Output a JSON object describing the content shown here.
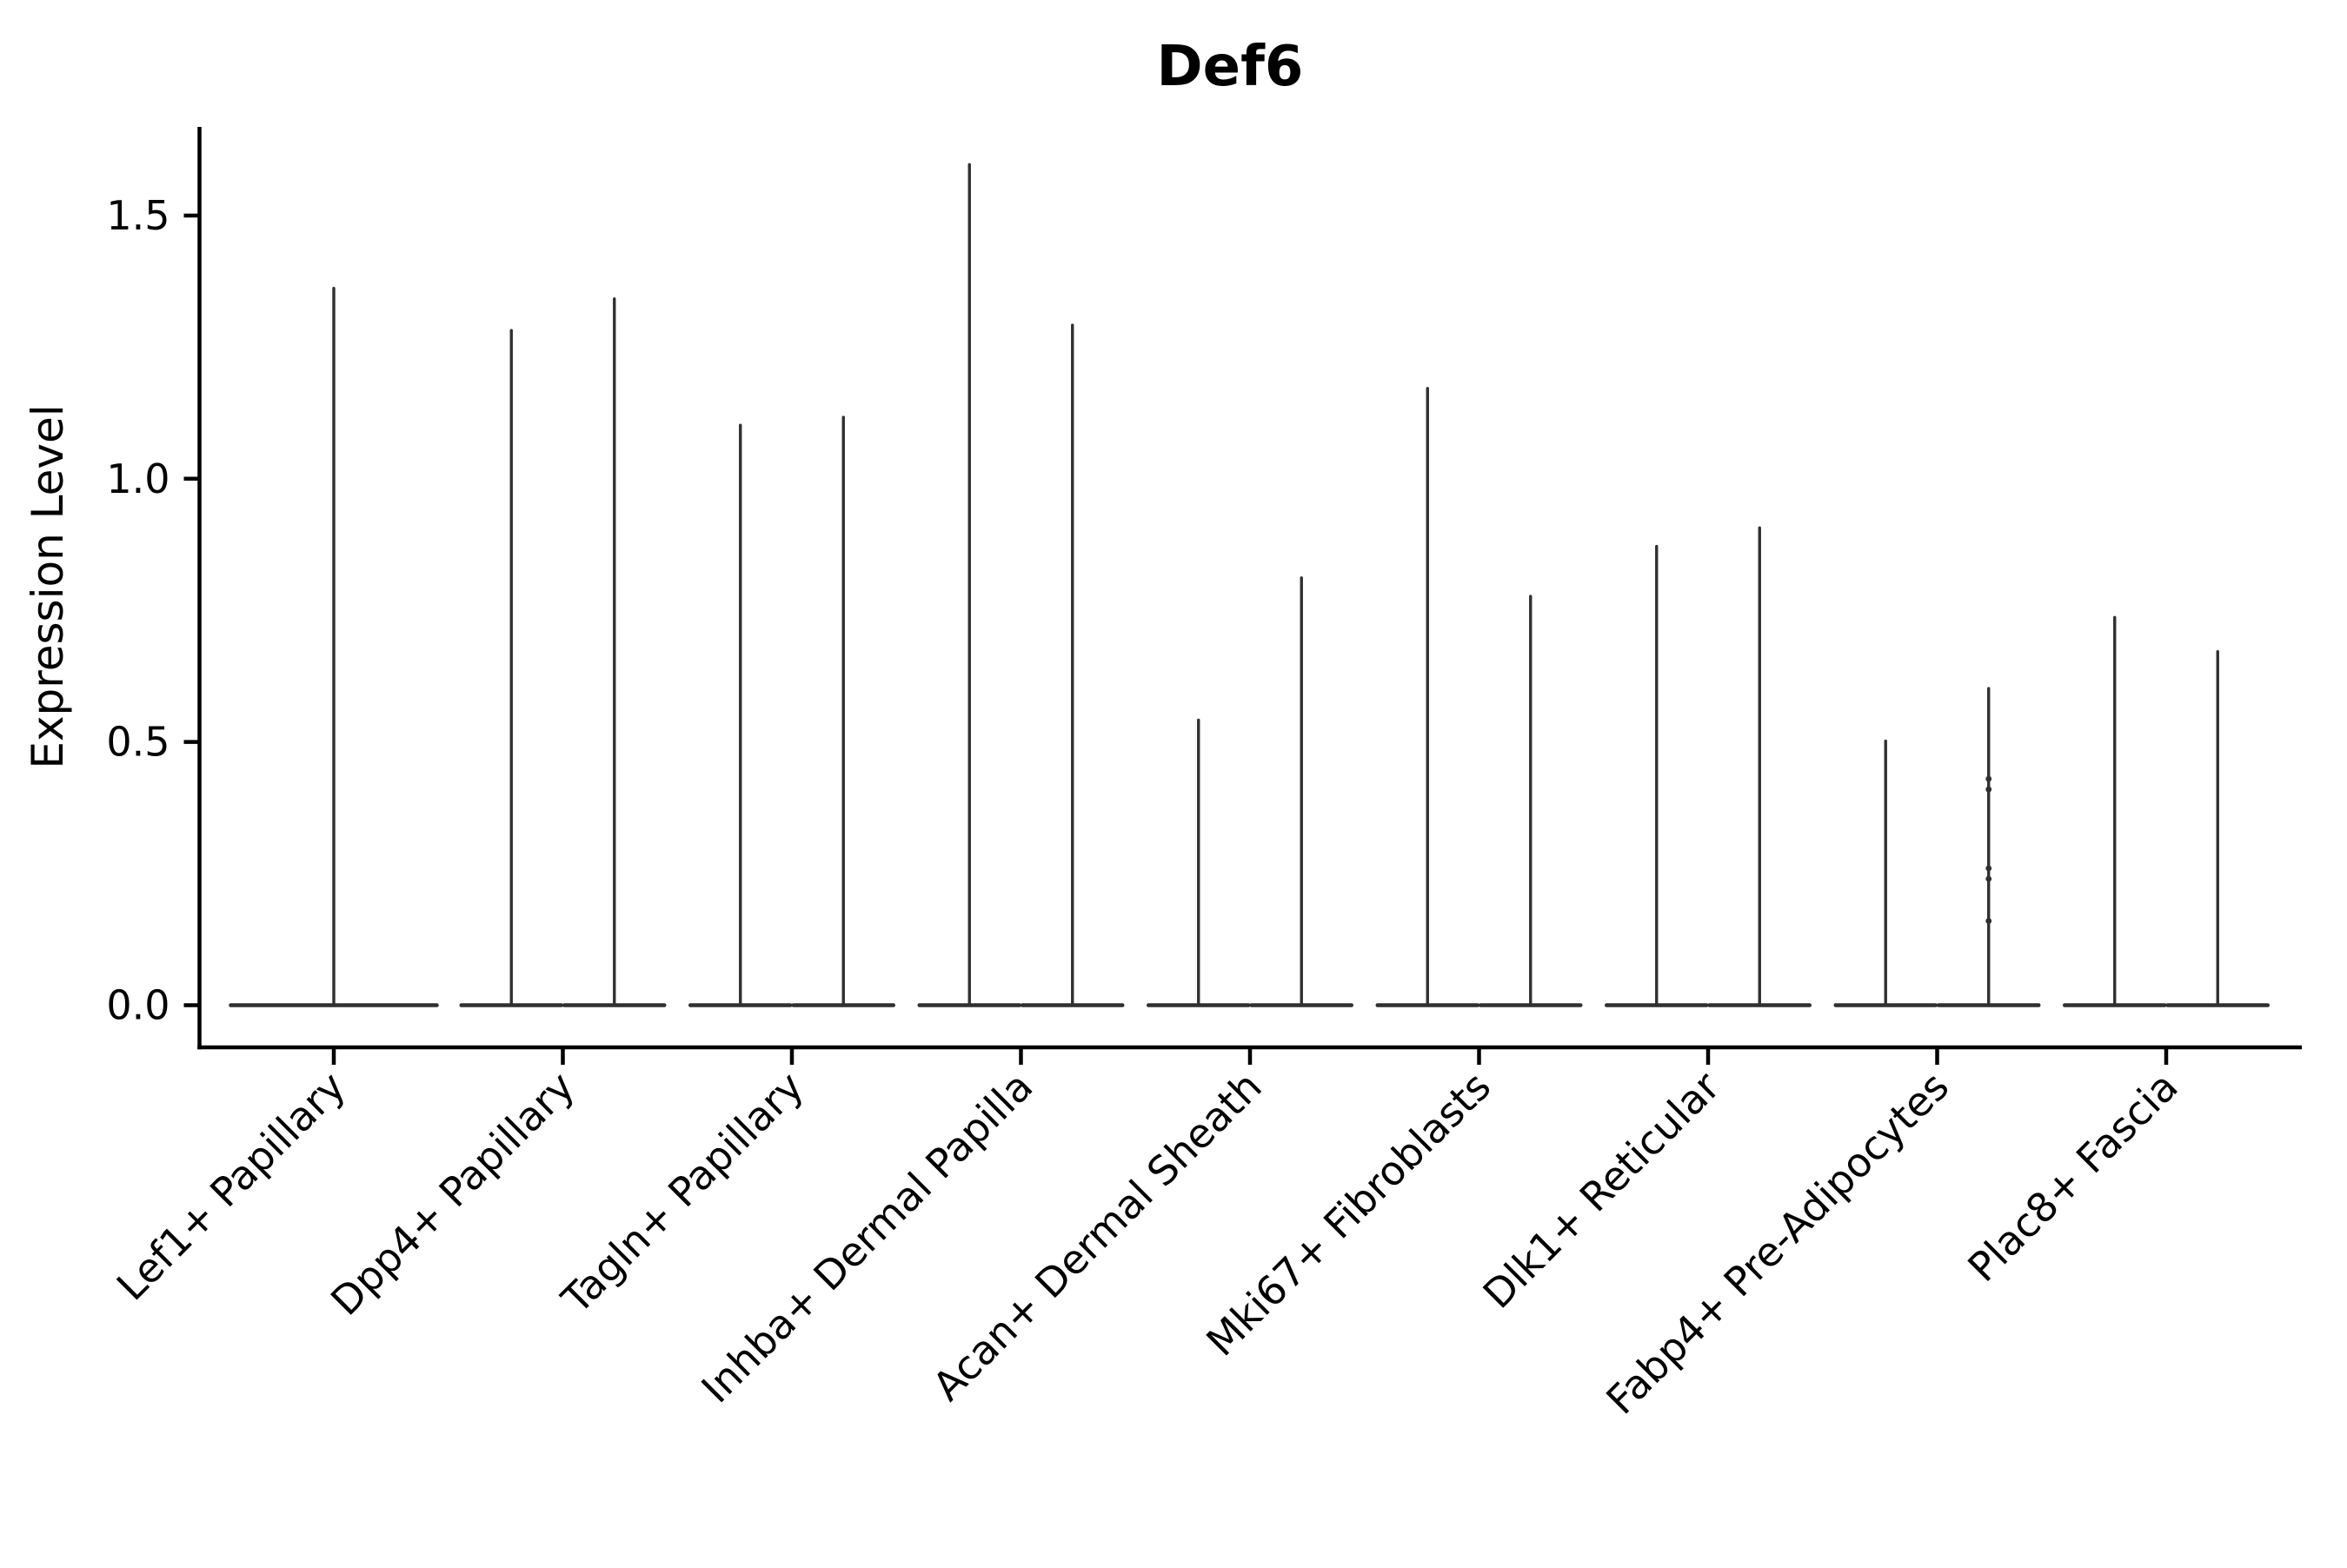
{
  "page": {
    "background": "#ffffff"
  },
  "chart_data": {
    "type": "violin",
    "title": "Def6",
    "xlabel": "",
    "ylabel": "Expression Level",
    "grid": false,
    "legend": "none",
    "ink_color": "#303030",
    "axis_color": "#000000",
    "ylim": [
      -0.08,
      1.675
    ],
    "y_ticks": [
      {
        "value": 0.0,
        "label": "0.0"
      },
      {
        "value": 0.5,
        "label": "0.5"
      },
      {
        "value": 1.0,
        "label": "1.0"
      },
      {
        "value": 1.5,
        "label": "1.5"
      }
    ],
    "x_tick_label_rotation": 45,
    "categories": [
      "Lef1+ Papillary",
      "Dpp4+ Papillary",
      "Tagln+ Papillary",
      "Inhba+ Dermal Papilla",
      "Acan+ Dermal Sheath",
      "Mki67+ Fibroblasts",
      "Dlk1+ Reticular",
      "Fabp4+ Pre-Adipocytes",
      "Plac8+ Fascia"
    ],
    "violins": [
      {
        "category": "Lef1+ Papillary",
        "group_maxes": [
          1.365
        ],
        "points": [
          []
        ]
      },
      {
        "category": "Dpp4+ Papillary",
        "group_maxes": [
          1.285,
          1.345
        ],
        "points": [
          [],
          []
        ]
      },
      {
        "category": "Tagln+ Papillary",
        "group_maxes": [
          1.105,
          1.12
        ],
        "points": [
          [],
          []
        ]
      },
      {
        "category": "Inhba+ Dermal Papilla",
        "group_maxes": [
          1.6,
          1.295
        ],
        "points": [
          [],
          []
        ]
      },
      {
        "category": "Acan+ Dermal Sheath",
        "group_maxes": [
          0.545,
          0.815
        ],
        "points": [
          [],
          []
        ]
      },
      {
        "category": "Mki67+ Fibroblasts",
        "group_maxes": [
          1.175,
          0.78
        ],
        "points": [
          [],
          []
        ]
      },
      {
        "category": "Dlk1+ Reticular",
        "group_maxes": [
          0.875,
          0.91
        ],
        "points": [
          [],
          []
        ]
      },
      {
        "category": "Fabp4+ Pre-Adipocytes",
        "group_maxes": [
          0.505,
          0.605
        ],
        "points": [
          [],
          [
            0.43,
            0.41,
            0.26,
            0.24,
            0.16
          ]
        ]
      },
      {
        "category": "Plac8+ Fascia",
        "group_maxes": [
          0.74,
          0.675
        ],
        "points": [
          [],
          []
        ]
      }
    ]
  }
}
